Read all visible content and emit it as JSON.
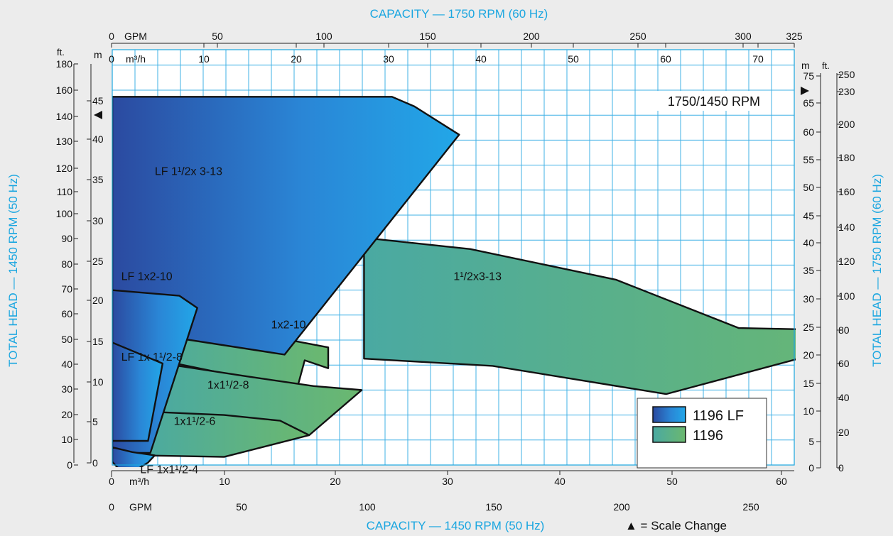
{
  "chart_data": {
    "type": "area",
    "top_axis_title": "CAPACITY — 1750 RPM (60 Hz)",
    "bottom_axis_title": "CAPACITY — 1450 RPM (50 Hz)",
    "left_axis_title": "TOTAL HEAD — 1450 RPM (50 Hz)",
    "right_axis_title": "TOTAL HEAD — 1750 RPM (60 Hz)",
    "top_gpm_unit": "GPM",
    "top_m3h_unit": "m³/h",
    "bottom_gpm_unit": "GPM",
    "bottom_m3h_unit": "m³/h",
    "left_ft_unit": "ft.",
    "left_m_unit": "m",
    "right_ft_unit": "ft.",
    "right_m_unit": "m",
    "top_gpm_ticks": [
      "0",
      "50",
      "100",
      "150",
      "200",
      "250",
      "300",
      "325"
    ],
    "top_m3h_ticks": [
      "0",
      "10",
      "20",
      "30",
      "40",
      "50",
      "60",
      "70"
    ],
    "bottom_gpm_ticks": [
      "0",
      "50",
      "100",
      "150",
      "200",
      "250"
    ],
    "bottom_m3h_ticks": [
      "0",
      "10",
      "20",
      "30",
      "40",
      "50",
      "60"
    ],
    "left_ft_ticks": [
      "0",
      "10",
      "20",
      "30",
      "40",
      "50",
      "60",
      "70",
      "80",
      "90",
      "100",
      "110",
      "120",
      "130",
      "140",
      "160",
      "180"
    ],
    "left_m_ticks": [
      "0",
      "5",
      "10",
      "15",
      "20",
      "25",
      "30",
      "35",
      "40",
      "45"
    ],
    "right_ft_ticks": [
      "0",
      "20",
      "40",
      "60",
      "80",
      "100",
      "120",
      "140",
      "160",
      "180",
      "200",
      "230",
      "250"
    ],
    "right_m_ticks": [
      "0",
      "5",
      "10",
      "15",
      "20",
      "25",
      "30",
      "35",
      "40",
      "45",
      "50",
      "55",
      "60",
      "65",
      "75"
    ],
    "speed_label": "1750/1450 RPM",
    "scale_change_note": "▲ = Scale Change",
    "legend": [
      {
        "name": "1196 LF",
        "color": "#2a6fd0"
      },
      {
        "name": "1196",
        "color": "#5bb28a"
      }
    ],
    "regions": [
      {
        "label": "LF 1¹/2x 3-13",
        "series": "1196 LF",
        "points": [
          [
            0,
            45.7
          ],
          [
            25,
            45.7
          ],
          [
            27,
            44.5
          ],
          [
            31,
            41.0
          ],
          [
            15.4,
            13.7
          ],
          [
            0,
            17
          ]
        ]
      },
      {
        "label": "1¹/2x3-13",
        "series": "1196",
        "points": [
          [
            22.5,
            28.2
          ],
          [
            32,
            26.8
          ],
          [
            45,
            23
          ],
          [
            56,
            17
          ],
          [
            70.5,
            16.6
          ],
          [
            49.5,
            8.8
          ],
          [
            34,
            12.3
          ],
          [
            22.5,
            13.2
          ]
        ]
      },
      {
        "label": "LF  1x2-10",
        "series": "1196 LF",
        "points": [
          [
            0,
            21.7
          ],
          [
            6,
            21
          ],
          [
            7.6,
            19.5
          ],
          [
            3.4,
            1.5
          ],
          [
            0,
            1.5
          ]
        ]
      },
      {
        "label": "1x2-10",
        "series": "1196",
        "points": [
          [
            7.2,
            17.5
          ],
          [
            10.5,
            17.2
          ],
          [
            14,
            16
          ],
          [
            19.3,
            14.6
          ],
          [
            19.3,
            12
          ],
          [
            17.2,
            13
          ],
          [
            16.5,
            9.4
          ],
          [
            13,
            10.5
          ],
          [
            6,
            12.5
          ],
          [
            2.8,
            11.5
          ]
        ]
      },
      {
        "label": "LF 1x 1¹/2-8",
        "series": "1196 LF",
        "points": [
          [
            0,
            15.2
          ],
          [
            4.5,
            12.6
          ],
          [
            3.2,
            3
          ],
          [
            0,
            3
          ]
        ]
      },
      {
        "label": "1x1¹/2-8",
        "series": "1196",
        "points": [
          [
            4.5,
            12.6
          ],
          [
            12,
            11
          ],
          [
            18,
            9.8
          ],
          [
            22.3,
            9.3
          ],
          [
            17.6,
            3.7
          ],
          [
            8,
            5.5
          ],
          [
            3.5,
            6.6
          ]
        ]
      },
      {
        "label": "1x1¹/2-6",
        "series": "1196",
        "points": [
          [
            3.5,
            6.6
          ],
          [
            10,
            6.2
          ],
          [
            15,
            5.5
          ],
          [
            17.6,
            3.7
          ],
          [
            10,
            1.0
          ],
          [
            2.5,
            1.2
          ]
        ]
      },
      {
        "label": "LF 1x1¹/2-4",
        "series": "1196 LF",
        "points": [
          [
            0,
            2.2
          ],
          [
            1.8,
            1.6
          ],
          [
            3.8,
            1.2
          ],
          [
            3.2,
            0.3
          ],
          [
            1.2,
            -1.4
          ],
          [
            0,
            0.4
          ]
        ]
      }
    ],
    "x_unit": "m³/h (1450 RPM)",
    "y_unit": "m (1450 RPM)",
    "xlim": [
      0,
      61
    ],
    "ylim": [
      0,
      52
    ],
    "grid": true,
    "legend_position": "bottom-right"
  }
}
